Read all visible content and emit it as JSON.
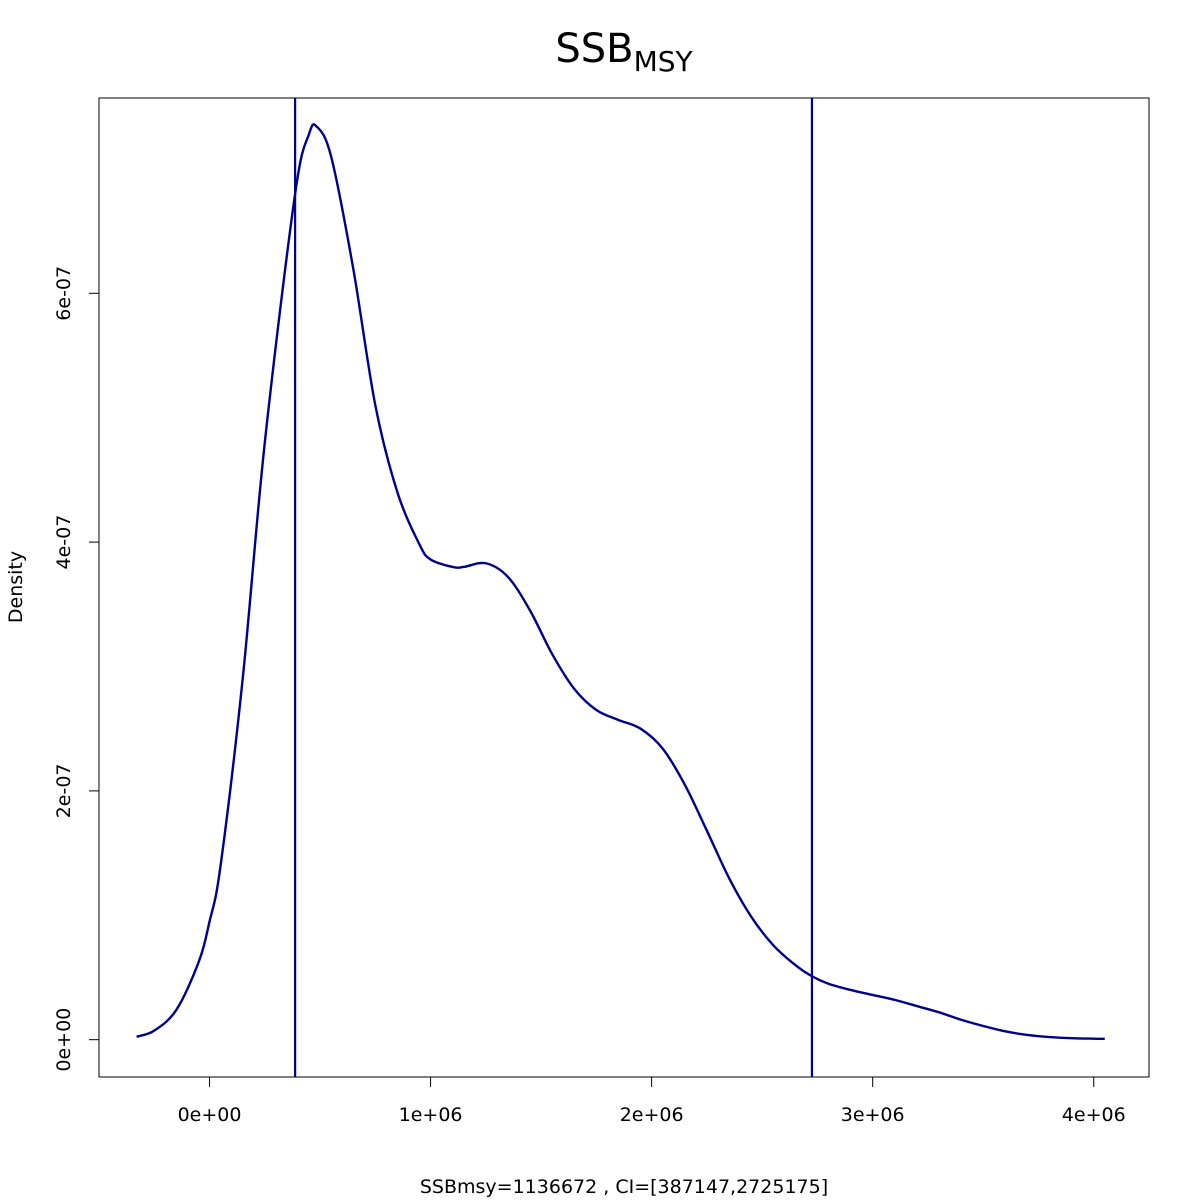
{
  "chart_data": {
    "type": "line",
    "title_main": "SSB",
    "title_sub": "MSY",
    "xlabel": "SSBmsy=1136672 , CI=[387147,2725175]",
    "ylabel": "Density",
    "xlim": [
      -500000,
      4250000
    ],
    "ylim": [
      -3e-08,
      7.57e-07
    ],
    "x_ticks": [
      0,
      1000000,
      2000000,
      3000000,
      4000000
    ],
    "x_tick_labels": [
      "0e+00",
      "1e+06",
      "2e+06",
      "3e+06",
      "4e+06"
    ],
    "y_ticks": [
      0,
      2e-07,
      4e-07,
      6e-07
    ],
    "y_tick_labels": [
      "0e+00",
      "2e-07",
      "4e-07",
      "6e-07"
    ],
    "line_color": "#00008B",
    "grid": false,
    "legend": "none",
    "vlines": [
      387147,
      2725175
    ],
    "series": [
      {
        "x": [
          -330000,
          -250000,
          -150000,
          -50000,
          0,
          50000,
          150000,
          250000,
          387147,
          450000,
          485000,
          550000,
          650000,
          750000,
          850000,
          950000,
          1000000,
          1100000,
          1150000,
          1250000,
          1350000,
          1450000,
          1550000,
          1650000,
          1750000,
          1850000,
          1950000,
          2050000,
          2150000,
          2250000,
          2350000,
          2450000,
          2550000,
          2650000,
          2725175,
          2800000,
          2900000,
          3000000,
          3100000,
          3200000,
          3300000,
          3400000,
          3500000,
          3600000,
          3700000,
          3800000,
          3900000,
          4000000,
          4050000
        ],
        "y": [
          2.4e-09,
          7.3e-09,
          2.4e-08,
          6.2e-08,
          9.5e-08,
          1.4e-07,
          2.9e-07,
          4.8e-07,
          6.8e-07,
          7.28e-07,
          7.34e-07,
          7.1e-07,
          6.2e-07,
          5.1e-07,
          4.4e-07,
          3.98e-07,
          3.86e-07,
          3.8e-07,
          3.8e-07,
          3.83e-07,
          3.72e-07,
          3.45e-07,
          3.1e-07,
          2.82e-07,
          2.65e-07,
          2.57e-07,
          2.5e-07,
          2.34e-07,
          2.05e-07,
          1.68e-07,
          1.3e-07,
          9.9e-08,
          7.6e-08,
          6e-08,
          5.1e-08,
          4.5e-08,
          4e-08,
          3.6e-08,
          3.2e-08,
          2.7e-08,
          2.2e-08,
          1.6e-08,
          1.1e-08,
          6.7e-09,
          3.8e-09,
          2.1e-09,
          1.2e-09,
          8e-10,
          7e-10
        ]
      }
    ]
  }
}
